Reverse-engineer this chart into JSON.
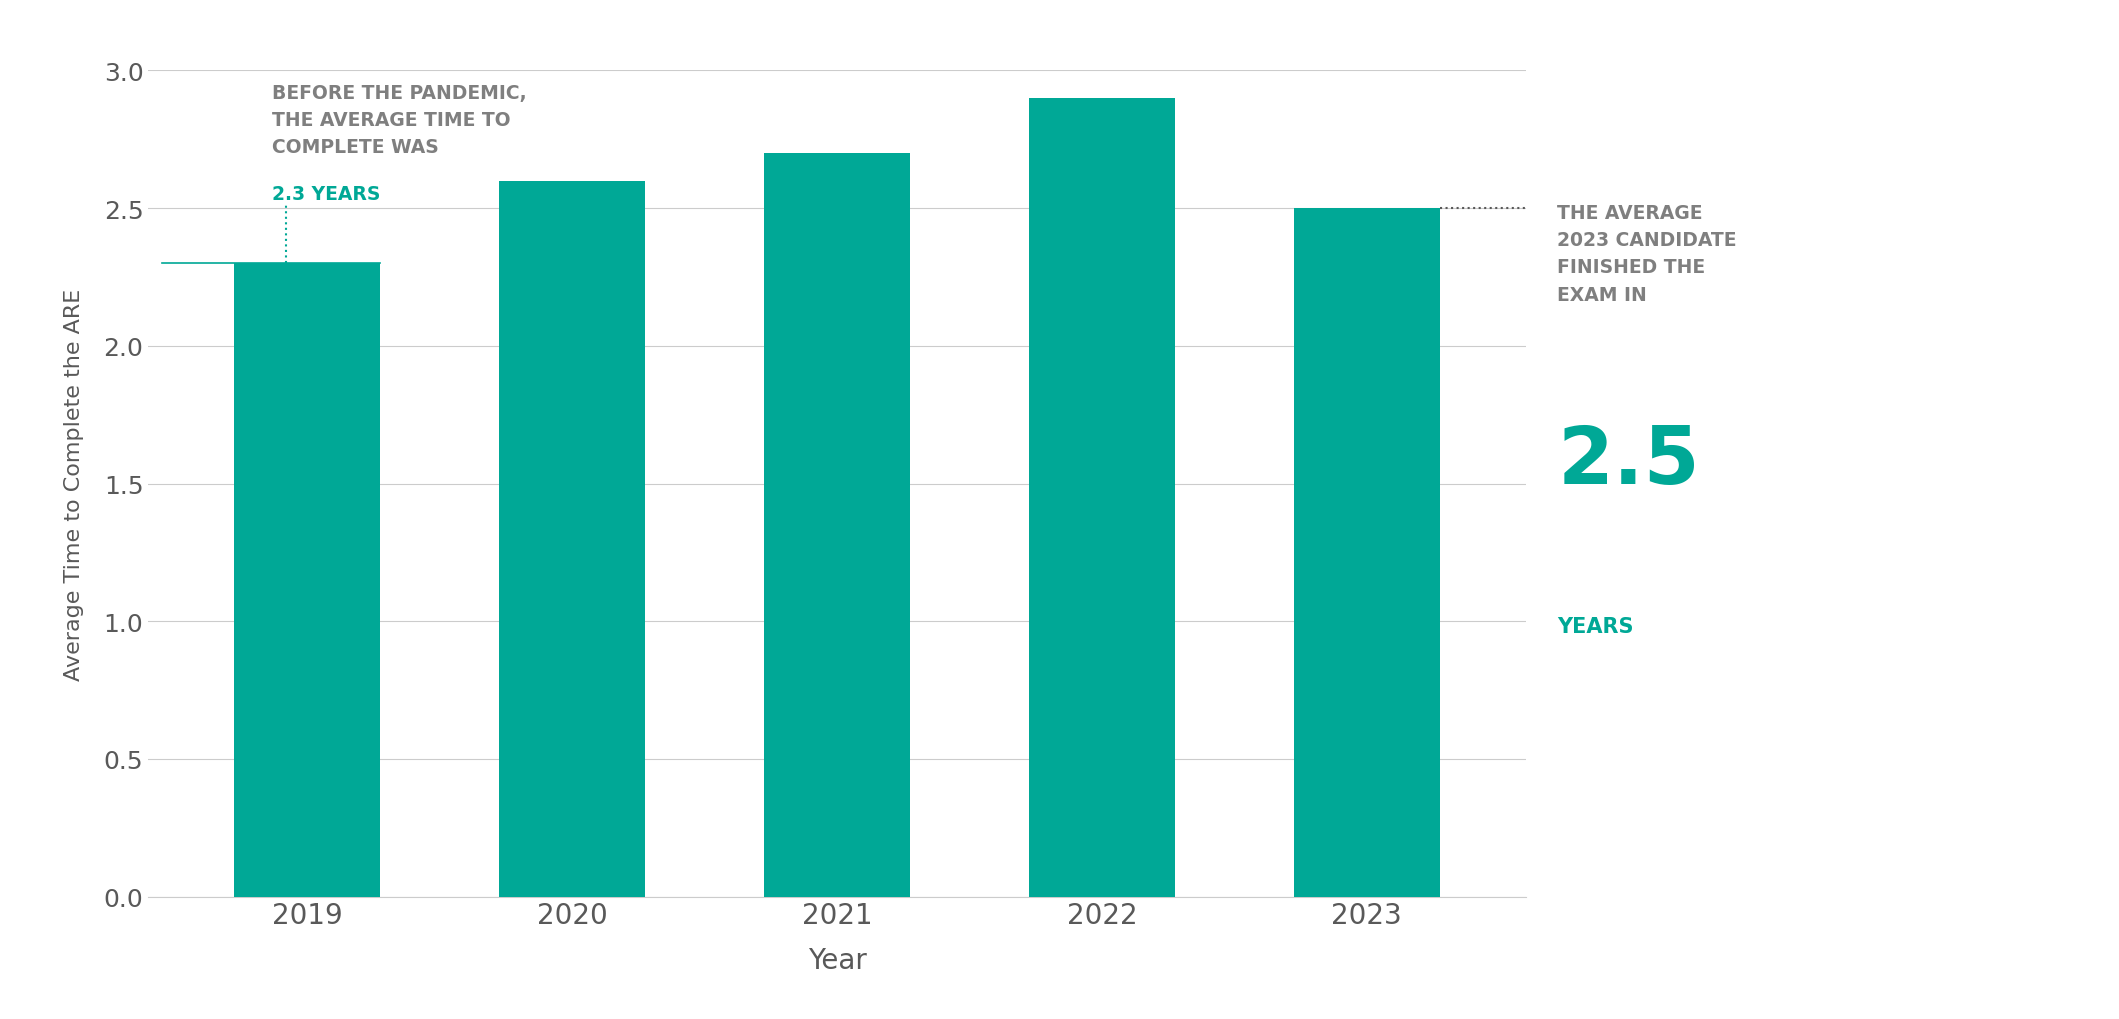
{
  "years": [
    "2019",
    "2020",
    "2021",
    "2022",
    "2023"
  ],
  "values": [
    2.3,
    2.6,
    2.7,
    2.9,
    2.5
  ],
  "bar_color": "#00A896",
  "background_color": "#ffffff",
  "ylabel": "Average Time to Complete the ARE",
  "xlabel": "Year",
  "ylim": [
    0,
    3.0
  ],
  "yticks": [
    0.0,
    0.5,
    1.0,
    1.5,
    2.0,
    2.5,
    3.0
  ],
  "annotation_left_line1": "BEFORE THE PANDEMIC,",
  "annotation_left_line2": "THE AVERAGE TIME TO",
  "annotation_left_line3": "COMPLETE WAS",
  "annotation_left_highlight": "2.3 YEARS",
  "annotation_right_line1": "THE AVERAGE",
  "annotation_right_line2": "2023 CANDIDATE",
  "annotation_right_line3": "FINISHED THE",
  "annotation_right_line4": "EXAM IN",
  "annotation_right_number": "2.5",
  "annotation_right_unit": "YEARS",
  "teal_color": "#00A896",
  "gray_color": "#7f7f7f",
  "dark_gray": "#595959"
}
